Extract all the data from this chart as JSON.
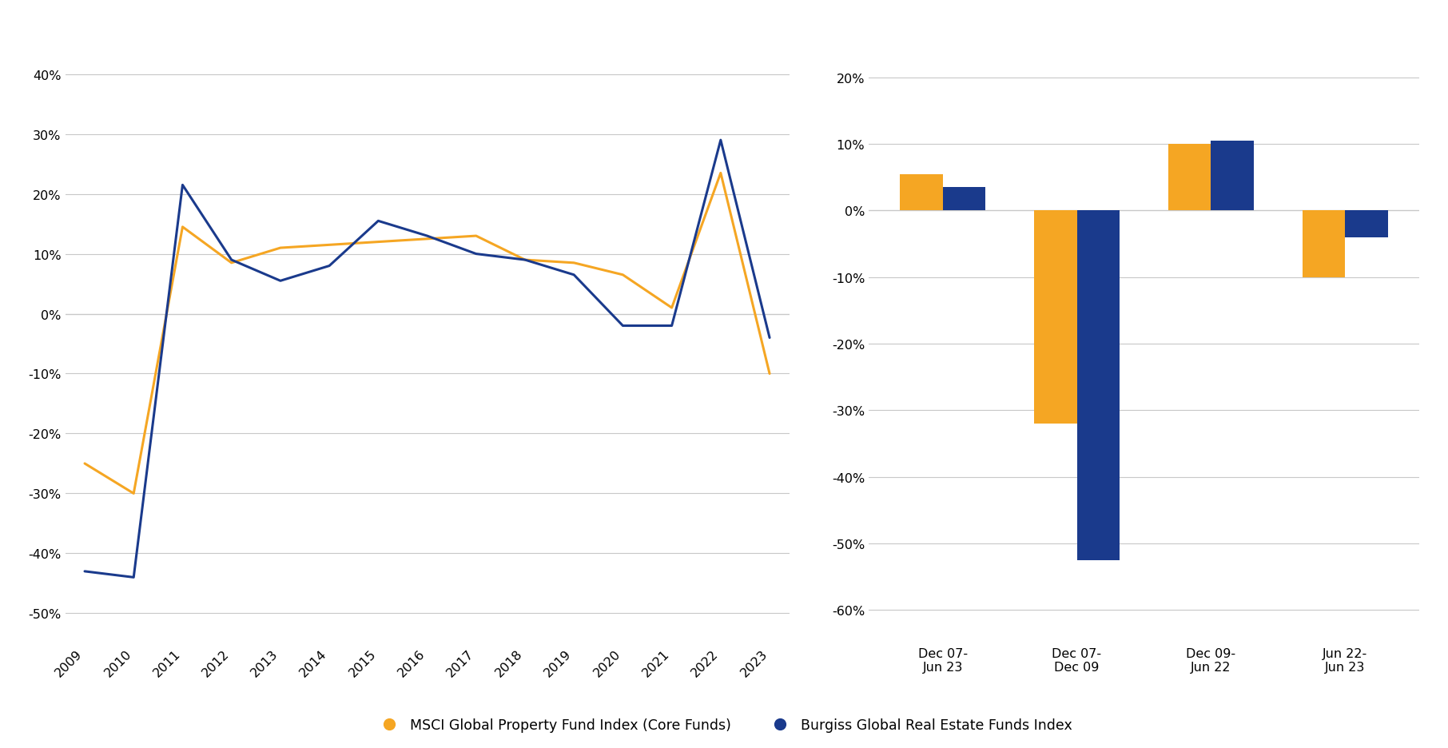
{
  "line_years": [
    2009,
    2010,
    2011,
    2012,
    2013,
    2014,
    2015,
    2016,
    2017,
    2018,
    2019,
    2020,
    2021,
    2022,
    2023
  ],
  "msci_line": [
    -0.25,
    -0.3,
    0.145,
    0.085,
    0.11,
    0.115,
    0.12,
    0.125,
    0.13,
    0.09,
    0.085,
    0.065,
    0.01,
    0.235,
    -0.1
  ],
  "burgiss_line": [
    -0.43,
    -0.44,
    0.215,
    0.09,
    0.055,
    0.08,
    0.155,
    0.13,
    0.1,
    0.09,
    0.065,
    -0.02,
    -0.02,
    0.29,
    -0.04
  ],
  "bar_categories": [
    "Dec 07-\nJun 23",
    "Dec 07-\nDec 09",
    "Dec 09-\nJun 22",
    "Jun 22-\nJun 23"
  ],
  "msci_bar": [
    0.055,
    -0.32,
    0.1,
    -0.1
  ],
  "burgiss_bar": [
    0.035,
    -0.525,
    0.105,
    -0.04
  ],
  "orange_color": "#F5A623",
  "blue_color": "#1A3A8C",
  "line_ylim": [
    -0.55,
    0.45
  ],
  "bar_ylim": [
    -0.65,
    0.25
  ],
  "line_yticks": [
    -0.5,
    -0.4,
    -0.3,
    -0.2,
    -0.1,
    0.0,
    0.1,
    0.2,
    0.3,
    0.4
  ],
  "bar_yticks": [
    -0.6,
    -0.5,
    -0.4,
    -0.3,
    -0.2,
    -0.1,
    0.0,
    0.1,
    0.2
  ],
  "legend_msci": "MSCI Global Property Fund Index (Core Funds)",
  "legend_burgiss": "Burgiss Global Real Estate Funds Index",
  "background_color": "#FFFFFF",
  "grid_color": "#C8C8C8"
}
